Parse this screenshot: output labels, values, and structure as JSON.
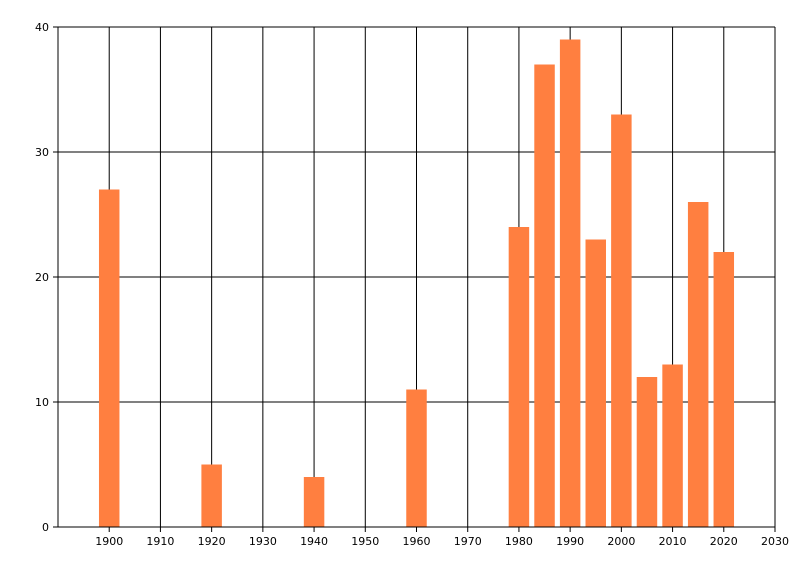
{
  "chart_data": {
    "type": "bar",
    "title": "",
    "xlabel": "",
    "ylabel": "",
    "xlim": [
      1890,
      2030
    ],
    "ylim": [
      0,
      40
    ],
    "grid": true,
    "x_ticks": [
      "1900",
      "1910",
      "1920",
      "1930",
      "1940",
      "1950",
      "1960",
      "1970",
      "1980",
      "1990",
      "2000",
      "2010",
      "2020",
      "2030"
    ],
    "y_ticks": [
      "0",
      "10",
      "20",
      "30",
      "40"
    ],
    "bar_width_years": 4,
    "x": [
      1900,
      1920,
      1940,
      1960,
      1980,
      1985,
      1990,
      1995,
      2000,
      2005,
      2010,
      2015,
      2020
    ],
    "values": [
      27,
      5,
      4,
      11,
      24,
      37,
      39,
      23,
      33,
      12,
      13,
      26,
      22
    ],
    "bar_color": "#FF7F40"
  }
}
